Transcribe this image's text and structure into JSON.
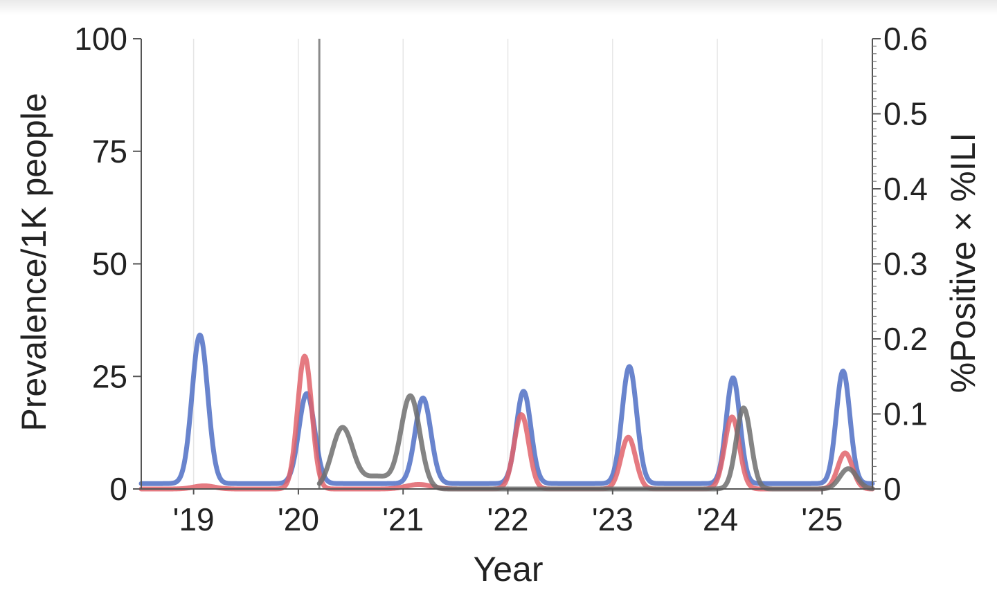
{
  "chart_data": {
    "type": "line",
    "title": "",
    "xlabel": "Year",
    "ylabel": "Prevalence/1K people",
    "ylabel_right": "%Positive × %ILI",
    "xlim": [
      2018.5,
      2025.48
    ],
    "ylim": [
      0,
      100
    ],
    "ylim_right": [
      0,
      0.6
    ],
    "x_ticks": [
      2019,
      2020,
      2021,
      2022,
      2023,
      2024,
      2025
    ],
    "x_tick_labels": [
      "'19",
      "'20",
      "'21",
      "'22",
      "'23",
      "'24",
      "'25"
    ],
    "y_ticks": [
      0,
      25,
      50,
      75,
      100
    ],
    "y_tick_labels": [
      "0",
      "25",
      "50",
      "75",
      "100"
    ],
    "y_ticks_right": [
      0,
      0.1,
      0.2,
      0.3,
      0.4,
      0.5,
      0.6
    ],
    "y_tick_labels_right": [
      "0",
      "0.1",
      "0.2",
      "0.3",
      "0.4",
      "0.5",
      "0.6"
    ],
    "grid": "vertical",
    "legend": "none",
    "vertical_marker": {
      "x": 2020.2,
      "color": "#8a8a8a"
    },
    "series": [
      {
        "name": "blue",
        "color": "#4f6fc4",
        "axis": "left",
        "baseline": 1.2,
        "peaks": [
          {
            "x": 2019.06,
            "height": 33.0,
            "width": 0.075
          },
          {
            "x": 2020.08,
            "height": 20.0,
            "width": 0.075
          },
          {
            "x": 2021.19,
            "height": 19.0,
            "width": 0.075
          },
          {
            "x": 2022.15,
            "height": 20.5,
            "width": 0.07
          },
          {
            "x": 2023.16,
            "height": 26.0,
            "width": 0.07
          },
          {
            "x": 2024.15,
            "height": 23.5,
            "width": 0.065
          },
          {
            "x": 2025.2,
            "height": 25.0,
            "width": 0.065
          }
        ]
      },
      {
        "name": "red",
        "color": "#e0636b",
        "axis": "left",
        "baseline": 0.0,
        "peaks": [
          {
            "x": 2019.1,
            "height": 0.7,
            "width": 0.1
          },
          {
            "x": 2020.06,
            "height": 29.5,
            "width": 0.068
          },
          {
            "x": 2021.15,
            "height": 1.0,
            "width": 0.12
          },
          {
            "x": 2022.13,
            "height": 16.5,
            "width": 0.07
          },
          {
            "x": 2023.15,
            "height": 11.5,
            "width": 0.07
          },
          {
            "x": 2024.14,
            "height": 16.0,
            "width": 0.07
          },
          {
            "x": 2025.22,
            "height": 8.0,
            "width": 0.07
          }
        ]
      },
      {
        "name": "gray",
        "color": "#6e6e6e",
        "axis": "left",
        "baseline": 0.0,
        "start_x": 2020.2,
        "peaks": [
          {
            "x": 2020.42,
            "height": 13.5,
            "width": 0.1
          },
          {
            "x": 2020.75,
            "height": 2.8,
            "width": 0.14
          },
          {
            "x": 2021.07,
            "height": 20.5,
            "width": 0.09
          },
          {
            "x": 2024.25,
            "height": 18.0,
            "width": 0.07
          },
          {
            "x": 2025.25,
            "height": 4.5,
            "width": 0.08
          }
        ]
      }
    ]
  }
}
